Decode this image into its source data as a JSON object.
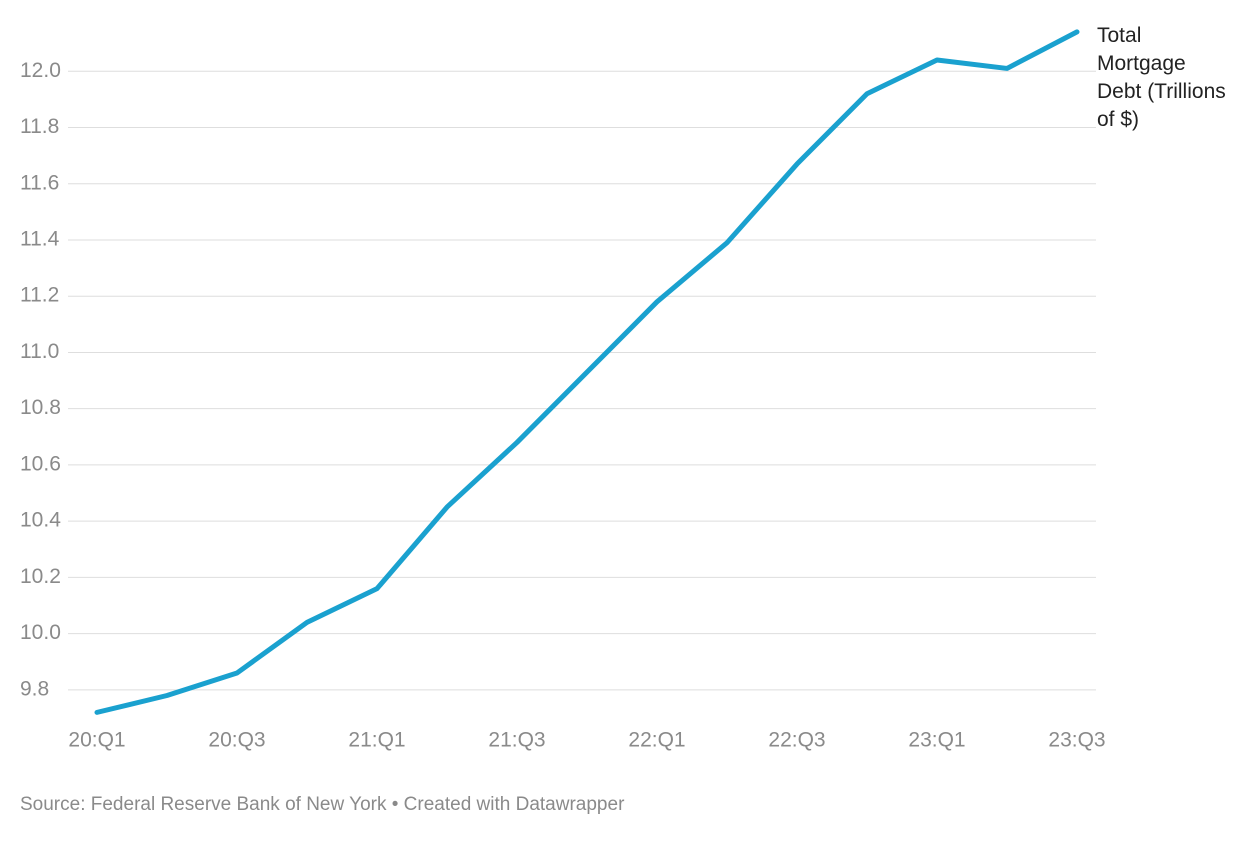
{
  "chart_data": {
    "type": "line",
    "categories": [
      "20:Q1",
      null,
      "20:Q3",
      null,
      "21:Q1",
      null,
      "21:Q3",
      null,
      "22:Q1",
      null,
      "22:Q3",
      null,
      "23:Q1",
      null,
      "23:Q3"
    ],
    "series": [
      {
        "name": "Total Mortgage Debt (Trillions of $)",
        "color": "#1aa1cf",
        "values": [
          9.72,
          9.78,
          9.86,
          10.04,
          10.16,
          10.45,
          10.68,
          10.93,
          11.18,
          11.39,
          11.67,
          11.92,
          12.04,
          12.01,
          12.14
        ]
      }
    ],
    "ylim": [
      9.7,
      12.2
    ],
    "yticks": [
      9.8,
      {
        "value": 10,
        "label": "10.0"
      },
      10.2,
      10.4,
      10.6,
      10.8,
      {
        "value": 11,
        "label": "11.0"
      },
      11.2,
      11.4,
      11.6,
      11.8,
      {
        "value": 12,
        "label": "12.0"
      }
    ],
    "grid": true,
    "source": "Source: Federal Reserve Bank of New York • Created with Datawrapper"
  }
}
